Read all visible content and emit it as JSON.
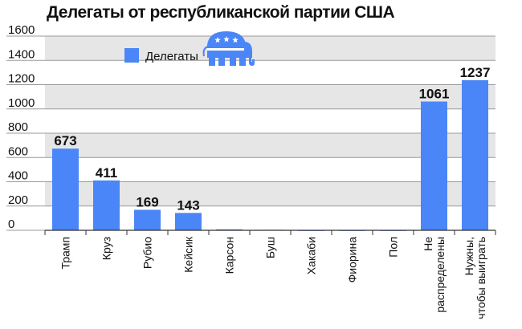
{
  "chart_data": {
    "type": "bar",
    "title": "Делегаты от республиканской партии США",
    "xlabel": "",
    "ylabel": "",
    "categories": [
      "Трамп",
      "Круз",
      "Рубио",
      "Кейсик",
      "Карсон",
      "Буш",
      "Хакаби",
      "Фиорина",
      "Пол",
      "Не распределены",
      "Нужны, чтобы выиграть"
    ],
    "category_lines": [
      [
        "Трамп"
      ],
      [
        "Круз"
      ],
      [
        "Рубио"
      ],
      [
        "Кейсик"
      ],
      [
        "Карсон"
      ],
      [
        "Буш"
      ],
      [
        "Хакаби"
      ],
      [
        "Фиорина"
      ],
      [
        "Пол"
      ],
      [
        "Не",
        "распределены"
      ],
      [
        "Нужны,",
        "чтобы выиграть"
      ]
    ],
    "series": [
      {
        "name": "Делегаты",
        "values": [
          673,
          411,
          169,
          143,
          8,
          4,
          1,
          1,
          1,
          1061,
          1237
        ],
        "color": "#4a86f7"
      }
    ],
    "data_labels": [
      "673",
      "411",
      "169",
      "143",
      null,
      null,
      null,
      null,
      null,
      "1061",
      "1237"
    ],
    "ylim": [
      0,
      1600
    ],
    "yticks": [
      0,
      200,
      400,
      600,
      800,
      1000,
      1200,
      1400,
      1600
    ],
    "grid": true,
    "band_color": "#e6e6e6",
    "legend_position": "top-left",
    "legend_icon": "republican-elephant-icon",
    "elephant_color": "#4a86f7"
  }
}
